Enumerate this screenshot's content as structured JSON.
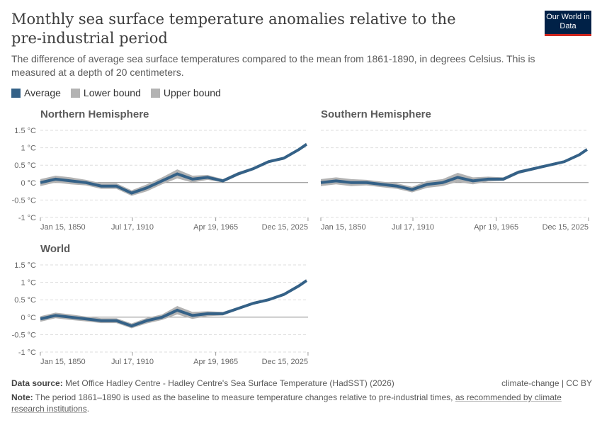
{
  "title": "Monthly sea surface temperature anomalies relative to the pre-industrial period",
  "subtitle": "The difference of average sea surface temperatures compared to the mean from 1861-1890, in degrees Celsius. This is measured at a depth of 20 centimeters.",
  "logo": "Our World in Data",
  "legend": [
    {
      "label": "Average",
      "color": "#346187"
    },
    {
      "label": "Lower bound",
      "color": "#b3b3b3"
    },
    {
      "label": "Upper bound",
      "color": "#b3b3b3"
    }
  ],
  "footer": {
    "source_label": "Data source:",
    "source": "Met Office Hadley Centre - Hadley Centre's Sea Surface Temperature (HadSST) (2026)",
    "license": "climate-change | CC BY",
    "note_label": "Note:",
    "note": "The period 1861–1890 is used as the baseline to measure temperature changes relative to pre-industrial times, ",
    "note_link": "as recommended by climate research institutions",
    "note_end": "."
  },
  "chart_data": [
    {
      "type": "line",
      "title": "Northern Hemisphere",
      "ylim": [
        -1,
        1.5
      ],
      "yticks": [
        "-1 °C",
        "-0.5 °C",
        "0 °C",
        "0.5 °C",
        "1 °C",
        "1.5 °C"
      ],
      "xlim": [
        1850,
        2026
      ],
      "xticks": [
        "Jan 15, 1850",
        "Jul 17, 1910",
        "Apr 19, 1965",
        "Dec 15, 2025"
      ],
      "grid": true,
      "x": [
        1850,
        1860,
        1870,
        1880,
        1890,
        1900,
        1910,
        1920,
        1930,
        1940,
        1950,
        1960,
        1970,
        1980,
        1990,
        2000,
        2010,
        2020,
        2025
      ],
      "series": [
        {
          "name": "Average",
          "values": [
            0.0,
            0.1,
            0.05,
            0.0,
            -0.1,
            -0.1,
            -0.3,
            -0.15,
            0.05,
            0.25,
            0.1,
            0.15,
            0.05,
            0.25,
            0.4,
            0.6,
            0.7,
            0.95,
            1.1
          ]
        },
        {
          "name": "Lower bound",
          "values": [
            -0.1,
            0.0,
            -0.05,
            -0.08,
            -0.18,
            -0.18,
            -0.38,
            -0.25,
            -0.05,
            0.12,
            0.0,
            0.08,
            0.0,
            0.2,
            0.36,
            0.56,
            0.66,
            0.91,
            1.06
          ]
        },
        {
          "name": "Upper bound",
          "values": [
            0.1,
            0.2,
            0.15,
            0.08,
            -0.02,
            -0.02,
            -0.22,
            -0.05,
            0.15,
            0.38,
            0.2,
            0.22,
            0.1,
            0.3,
            0.44,
            0.64,
            0.74,
            0.99,
            1.14
          ]
        }
      ]
    },
    {
      "type": "line",
      "title": "Southern Hemisphere",
      "ylim": [
        -1,
        1.5
      ],
      "yticks": [],
      "xlim": [
        1850,
        2026
      ],
      "xticks": [
        "Jan 15, 1850",
        "Jul 17, 1910",
        "Apr 19, 1965",
        "Dec 15, 2025"
      ],
      "grid": true,
      "x": [
        1850,
        1860,
        1870,
        1880,
        1890,
        1900,
        1910,
        1920,
        1930,
        1940,
        1950,
        1960,
        1970,
        1980,
        1990,
        2000,
        2010,
        2020,
        2025
      ],
      "series": [
        {
          "name": "Average",
          "values": [
            0.0,
            0.05,
            0.0,
            0.0,
            -0.05,
            -0.1,
            -0.2,
            -0.05,
            0.0,
            0.15,
            0.05,
            0.1,
            0.1,
            0.3,
            0.4,
            0.5,
            0.6,
            0.8,
            0.95
          ]
        },
        {
          "name": "Lower bound",
          "values": [
            -0.1,
            -0.05,
            -0.1,
            -0.08,
            -0.13,
            -0.18,
            -0.28,
            -0.15,
            -0.1,
            0.02,
            -0.05,
            0.03,
            0.05,
            0.25,
            0.36,
            0.46,
            0.56,
            0.76,
            0.91
          ]
        },
        {
          "name": "Upper bound",
          "values": [
            0.1,
            0.15,
            0.1,
            0.08,
            0.03,
            -0.02,
            -0.12,
            0.05,
            0.1,
            0.28,
            0.15,
            0.17,
            0.15,
            0.35,
            0.44,
            0.54,
            0.64,
            0.84,
            0.99
          ]
        }
      ]
    },
    {
      "type": "line",
      "title": "World",
      "ylim": [
        -1,
        1.5
      ],
      "yticks": [
        "-1 °C",
        "-0.5 °C",
        "0 °C",
        "0.5 °C",
        "1 °C",
        "1.5 °C"
      ],
      "xlim": [
        1850,
        2026
      ],
      "xticks": [
        "Jan 15, 1850",
        "Jul 17, 1910",
        "Apr 19, 1965",
        "Dec 15, 2025"
      ],
      "grid": true,
      "x": [
        1850,
        1860,
        1870,
        1880,
        1890,
        1900,
        1910,
        1920,
        1930,
        1940,
        1950,
        1960,
        1970,
        1980,
        1990,
        2000,
        2010,
        2020,
        2025
      ],
      "series": [
        {
          "name": "Average",
          "values": [
            -0.05,
            0.05,
            0.0,
            -0.05,
            -0.1,
            -0.1,
            -0.25,
            -0.1,
            0.0,
            0.2,
            0.05,
            0.1,
            0.1,
            0.25,
            0.4,
            0.5,
            0.65,
            0.9,
            1.05
          ]
        },
        {
          "name": "Lower bound",
          "values": [
            -0.13,
            -0.03,
            -0.08,
            -0.12,
            -0.17,
            -0.17,
            -0.32,
            -0.18,
            -0.08,
            0.08,
            -0.05,
            0.03,
            0.05,
            0.21,
            0.36,
            0.46,
            0.61,
            0.86,
            1.01
          ]
        },
        {
          "name": "Upper bound",
          "values": [
            0.03,
            0.13,
            0.08,
            0.02,
            -0.03,
            -0.03,
            -0.18,
            -0.02,
            0.08,
            0.32,
            0.15,
            0.17,
            0.15,
            0.29,
            0.44,
            0.54,
            0.69,
            0.94,
            1.09
          ]
        }
      ]
    }
  ]
}
